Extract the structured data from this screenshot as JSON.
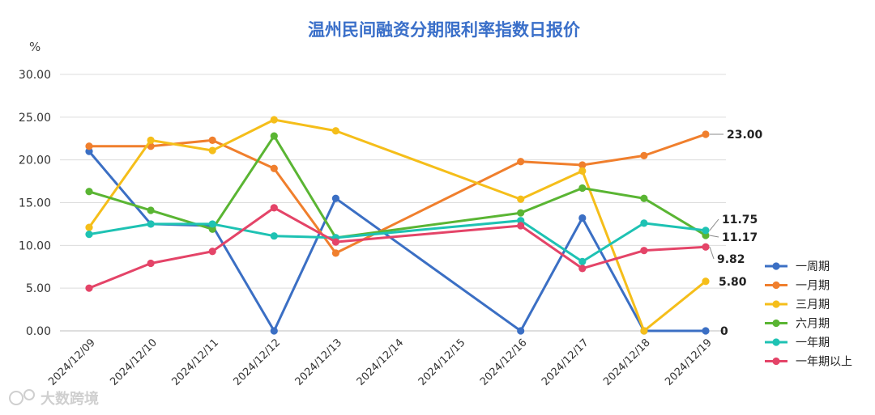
{
  "chart_data": {
    "type": "line",
    "title": "温州民间融资分期限利率指数日报价",
    "ylabel": "%",
    "ylim": [
      0,
      30
    ],
    "yticks": [
      "0.00",
      "5.00",
      "10.00",
      "15.00",
      "20.00",
      "25.00",
      "30.00"
    ],
    "categories": [
      "2024/12/09",
      "2024/12/10",
      "2024/12/11",
      "2024/12/12",
      "2024/12/13",
      "2024/12/14",
      "2024/12/15",
      "2024/12/16",
      "2024/12/17",
      "2024/12/18",
      "2024/12/19"
    ],
    "grid": "horizontal",
    "legend_position": "right",
    "series": [
      {
        "name": "一周期",
        "color": "#3b6fc4",
        "values": [
          21.0,
          12.5,
          12.3,
          0.0,
          15.5,
          null,
          null,
          0.0,
          13.2,
          0.0,
          0.0
        ],
        "end_label": "0"
      },
      {
        "name": "一月期",
        "color": "#f07f2d",
        "values": [
          21.6,
          21.6,
          22.3,
          19.0,
          9.1,
          null,
          null,
          19.8,
          19.4,
          20.5,
          23.0
        ],
        "end_label": "23.00"
      },
      {
        "name": "三月期",
        "color": "#f5be1a",
        "values": [
          12.1,
          22.3,
          21.1,
          24.7,
          23.4,
          null,
          null,
          15.4,
          18.7,
          0.0,
          5.8
        ],
        "end_label": "5.80"
      },
      {
        "name": "六月期",
        "color": "#5ab533",
        "values": [
          16.3,
          14.1,
          11.9,
          22.8,
          10.9,
          null,
          null,
          13.8,
          16.7,
          15.5,
          11.17
        ],
        "end_label": "11.17"
      },
      {
        "name": "一年期",
        "color": "#1ec2b3",
        "values": [
          11.3,
          12.5,
          12.5,
          11.1,
          10.9,
          null,
          null,
          12.9,
          8.1,
          12.6,
          11.75
        ],
        "end_label": "11.75"
      },
      {
        "name": "一年期以上",
        "color": "#e44468",
        "values": [
          5.0,
          7.9,
          9.3,
          14.4,
          10.4,
          null,
          null,
          12.3,
          7.3,
          9.4,
          9.82
        ],
        "end_label": "9.82"
      }
    ]
  },
  "watermark": "大数跨境"
}
